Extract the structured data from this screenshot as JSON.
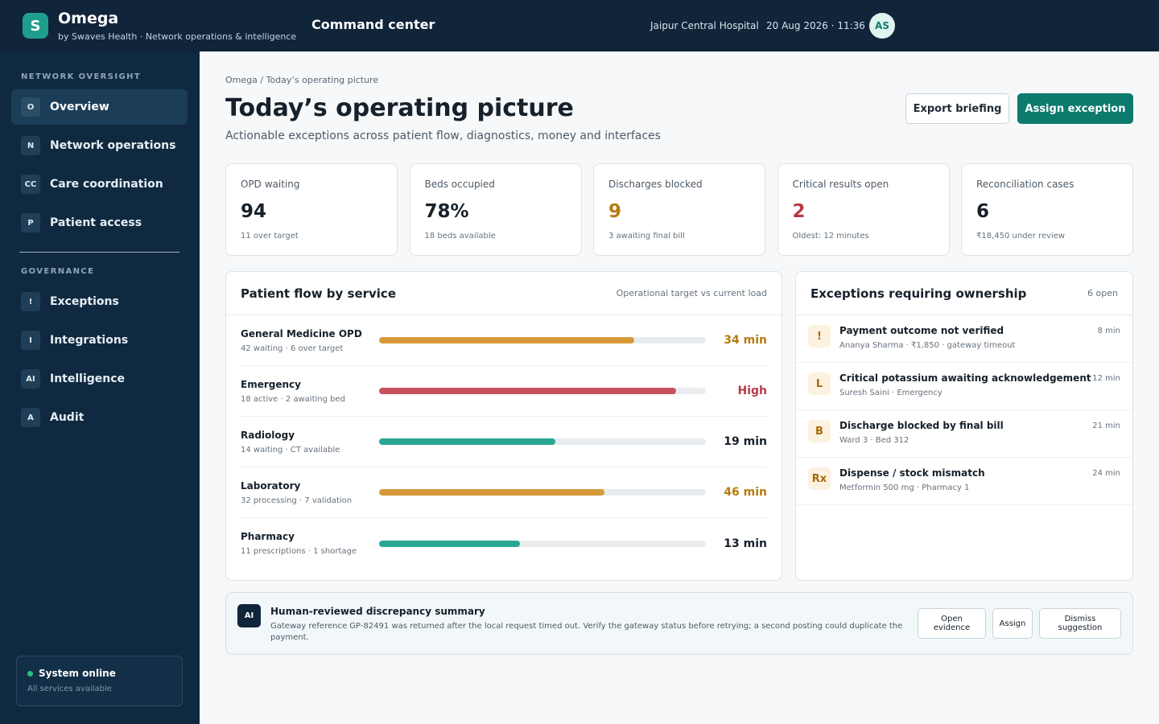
{
  "header": {
    "logo": "S",
    "brand": "Omega",
    "tagline": "by Swaves Health · Network operations & intelligence",
    "section": "Command center",
    "hospital": "Jaipur Central Hospital",
    "datetime": "20 Aug 2026 · 11:36",
    "avatar": "AS"
  },
  "sidebar": {
    "groups": [
      {
        "title": "NETWORK OVERSIGHT",
        "items": [
          {
            "icon": "O",
            "label": "Overview",
            "active": true
          },
          {
            "icon": "N",
            "label": "Network operations"
          },
          {
            "icon": "CC",
            "label": "Care coordination"
          },
          {
            "icon": "P",
            "label": "Patient access"
          }
        ]
      },
      {
        "title": "GOVERNANCE",
        "items": [
          {
            "icon": "!",
            "label": "Exceptions"
          },
          {
            "icon": "I",
            "label": "Integrations"
          },
          {
            "icon": "AI",
            "label": "Intelligence"
          },
          {
            "icon": "A",
            "label": "Audit"
          }
        ]
      }
    ],
    "status": {
      "title": "System online",
      "detail": "All services available"
    }
  },
  "page": {
    "breadcrumb": "Omega / Today’s operating picture",
    "title": "Today’s operating picture",
    "subtitle": "Actionable exceptions across patient flow, diagnostics, money and interfaces",
    "actions": [
      "Export briefing",
      "Assign exception"
    ]
  },
  "kpis": [
    {
      "label": "OPD waiting",
      "value": "94",
      "note": "11 over target",
      "tone": "default"
    },
    {
      "label": "Beds occupied",
      "value": "78%",
      "note": "18 beds available",
      "tone": "default"
    },
    {
      "label": "Discharges blocked",
      "value": "9",
      "note": "3 awaiting final bill",
      "tone": "amber"
    },
    {
      "label": "Critical results open",
      "value": "2",
      "note": "Oldest: 12 minutes",
      "tone": "red"
    },
    {
      "label": "Reconciliation cases",
      "value": "6",
      "note": "₹18,450 under review",
      "tone": "default"
    }
  ],
  "flow": {
    "title": "Patient flow by service",
    "caption": "Operational target vs current load",
    "rows": [
      {
        "name": "General Medicine OPD",
        "detail": "42 waiting · 6 over target",
        "load": 78,
        "status": "34 min",
        "tone": "amber"
      },
      {
        "name": "Emergency",
        "detail": "18 active · 2 awaiting bed",
        "load": 91,
        "status": "High",
        "tone": "red"
      },
      {
        "name": "Radiology",
        "detail": "14 waiting · CT available",
        "load": 54,
        "status": "19 min",
        "tone": "green"
      },
      {
        "name": "Laboratory",
        "detail": "32 processing · 7 validation",
        "load": 69,
        "status": "46 min",
        "tone": "amber"
      },
      {
        "name": "Pharmacy",
        "detail": "11 prescriptions · 1 shortage",
        "load": 43,
        "status": "13 min",
        "tone": "green"
      }
    ]
  },
  "exceptions": {
    "title": "Exceptions requiring ownership",
    "count": "6 open",
    "items": [
      {
        "icon": "!",
        "title": "Payment outcome not verified",
        "detail": "Ananya Sharma · ₹1,850 · gateway timeout",
        "age": "8 min"
      },
      {
        "icon": "L",
        "title": "Critical potassium awaiting acknowledgement",
        "detail": "Suresh Saini · Emergency",
        "age": "12 min"
      },
      {
        "icon": "B",
        "title": "Discharge blocked by final bill",
        "detail": "Ward 3 · Bed 312",
        "age": "21 min"
      },
      {
        "icon": "Rx",
        "title": "Dispense / stock mismatch",
        "detail": "Metformin 500 mg · Pharmacy 1",
        "age": "24 min"
      }
    ]
  },
  "ai": {
    "badge": "AI",
    "title": "Human-reviewed discrepancy summary",
    "text": "Gateway reference GP-82491 was returned after the local request timed out. Verify the gateway status before retrying; a second posting could duplicate the payment.",
    "actions": [
      "Open evidence",
      "Assign",
      "Dismiss suggestion"
    ]
  }
}
